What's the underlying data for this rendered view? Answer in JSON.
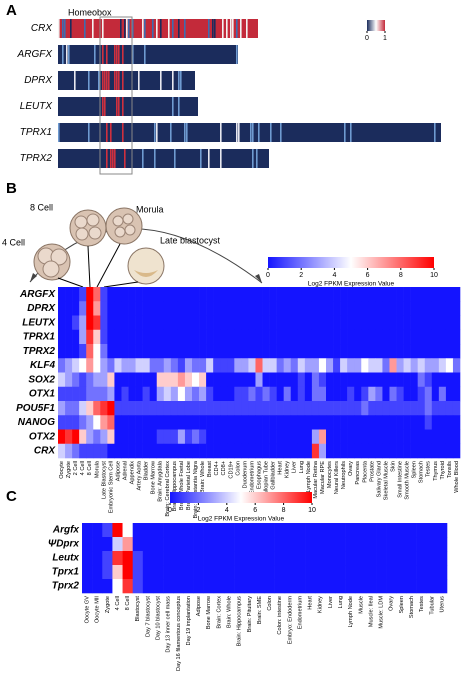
{
  "panel_a": {
    "label": "A",
    "annotation": "Homeobox",
    "genes": [
      "CRX",
      "ARGFX",
      "DPRX",
      "LEUTX",
      "TPRX1",
      "TPRX2"
    ],
    "legend_ticks": [
      0,
      1
    ]
  },
  "chart_data": [
    {
      "type": "heatmap",
      "label": "B",
      "stage_labels": [
        "8 Cell",
        "Morula",
        "4 Cell",
        "Late blastocyst"
      ],
      "rows": [
        "ARGFX",
        "DPRX",
        "LEUTX",
        "TPRX1",
        "TPRX2",
        "KLF4",
        "SOX2",
        "OTX1",
        "POU5F1",
        "NANOG",
        "OTX2",
        "CRX"
      ],
      "row_colors": [
        "#e0218a",
        "#e0218a",
        "#e0218a",
        "#e0218a",
        "#000000",
        "#000000",
        "#000000",
        "#000000",
        "#000000",
        "#000000",
        "#000000",
        "#000000"
      ],
      "columns": [
        "Oocyte",
        "Zygote",
        "2 Cell",
        "4 Cell",
        "8 Cell",
        "Morula",
        "Late Blastocyst",
        "Embryonic Stem Cell",
        "Adipose",
        "Adrenal",
        "Appendix",
        "Artery Aorta",
        "Bladder",
        "Bone Marrow",
        "Brain: Amygdala",
        "Brain: Cerebral Cortex",
        "Brain: Hippocampus",
        "Brain: Whole Foetal",
        "Brain: Parietal Lobe",
        "Brain: Substantia Nigra",
        "Brain: Whole",
        "Breast",
        "CD4+",
        "CD8+",
        "CD19+",
        "Colon",
        "Duodenum",
        "Endometrium",
        "Esophagus",
        "Fallopian Tube",
        "Gallbladder",
        "Heart",
        "Kidney",
        "Liver",
        "Lung",
        "Lymph Node",
        "Macular Retina",
        "Macular RPE",
        "Monocytes",
        "Neural Killers",
        "Neutrophils",
        "Ovary",
        "Pancreas",
        "Placenta",
        "Prostate",
        "Salivary Gland",
        "Skeletal Muscle",
        "Skin",
        "Small Intestine",
        "Smooth Muscle",
        "Spleen",
        "Stomach",
        "Testes",
        "Thymus",
        "Thyroid",
        "Tonsils",
        "Whole Blood"
      ],
      "values": [
        [
          0,
          0,
          0,
          1,
          10,
          8,
          1,
          0,
          0,
          0,
          0,
          0,
          0,
          0,
          0,
          0,
          0,
          0,
          0,
          0,
          0,
          0,
          0,
          0,
          0,
          0,
          0,
          0,
          0,
          0,
          0,
          0,
          0,
          0,
          0,
          0,
          0,
          0,
          0,
          0,
          0,
          0,
          0,
          0,
          0,
          0,
          0,
          0,
          0,
          0,
          0,
          0,
          0,
          0,
          0,
          0,
          0
        ],
        [
          0,
          0,
          0,
          2,
          10,
          7,
          1,
          0,
          0,
          0,
          0,
          0,
          0,
          0,
          0,
          0,
          0,
          0,
          0,
          0,
          0,
          0,
          0,
          0,
          0,
          0,
          0,
          0,
          0,
          0,
          0,
          0,
          0,
          0,
          0,
          0,
          0,
          0,
          0,
          0,
          0,
          0,
          0,
          0,
          0,
          0,
          0,
          0,
          0,
          0,
          0,
          0,
          0,
          0,
          0,
          0,
          0
        ],
        [
          0,
          0,
          1,
          3,
          10,
          9,
          1,
          0,
          0,
          0,
          0,
          0,
          0,
          0,
          0,
          0,
          0,
          0,
          0,
          0,
          0,
          0,
          0,
          0,
          0,
          0,
          0,
          0,
          0,
          0,
          0,
          0,
          0,
          0,
          0,
          0,
          0,
          0,
          0,
          0,
          0,
          0,
          0,
          0,
          0,
          0,
          0,
          0,
          0,
          0,
          0,
          0,
          0,
          0,
          0,
          0,
          0
        ],
        [
          0,
          0,
          0,
          3,
          9,
          6,
          1,
          0,
          0,
          0,
          0,
          0,
          0,
          0,
          0,
          0,
          0,
          0,
          0,
          0,
          0,
          0,
          0,
          0,
          0,
          0,
          0,
          0,
          0,
          0,
          0,
          0,
          0,
          0,
          0,
          0,
          0,
          0,
          0,
          0,
          0,
          0,
          0,
          0,
          0,
          0,
          0,
          0,
          0,
          0,
          0,
          0,
          0,
          0,
          0,
          0,
          0
        ],
        [
          0,
          0,
          0,
          1,
          8,
          5,
          2,
          0,
          0,
          0,
          0,
          0,
          0,
          0,
          0,
          0,
          0,
          0,
          0,
          0,
          0,
          0,
          0,
          0,
          0,
          0,
          0,
          0,
          0,
          0,
          0,
          0,
          0,
          0,
          0,
          0,
          0,
          0,
          0,
          0,
          0,
          0,
          0,
          0,
          0,
          0,
          0,
          0,
          0,
          0,
          0,
          0,
          0,
          0,
          0,
          0,
          0
        ],
        [
          2,
          3,
          4,
          5,
          7,
          5,
          3,
          2,
          4,
          3,
          3,
          4,
          4,
          2,
          2,
          3,
          2,
          1,
          3,
          2,
          2,
          4,
          1,
          1,
          1,
          3,
          3,
          4,
          8,
          4,
          4,
          2,
          3,
          2,
          4,
          3,
          3,
          5,
          3,
          1,
          4,
          3,
          3,
          5,
          4,
          4,
          2,
          7,
          3,
          4,
          3,
          4,
          3,
          3,
          4,
          5,
          2
        ],
        [
          4,
          3,
          2,
          1,
          2,
          3,
          3,
          6,
          0,
          0,
          0,
          0,
          0,
          0,
          6,
          6,
          6,
          7,
          6,
          5,
          6,
          0,
          0,
          0,
          0,
          0,
          0,
          0,
          3,
          0,
          0,
          0,
          0,
          0,
          1,
          0,
          2,
          1,
          0,
          0,
          0,
          0,
          0,
          0,
          0,
          0,
          0,
          0,
          0,
          0,
          0,
          2,
          1,
          0,
          0,
          0,
          0
        ],
        [
          1,
          1,
          1,
          1,
          2,
          2,
          2,
          3,
          0,
          1,
          0,
          0,
          1,
          0,
          3,
          4,
          3,
          5,
          3,
          2,
          3,
          1,
          0,
          0,
          0,
          1,
          1,
          2,
          1,
          2,
          1,
          0,
          2,
          0,
          1,
          0,
          2,
          2,
          0,
          0,
          0,
          1,
          0,
          1,
          3,
          2,
          0,
          2,
          1,
          0,
          0,
          1,
          2,
          0,
          2,
          0,
          0
        ],
        [
          3,
          2,
          2,
          4,
          6,
          8,
          9,
          10,
          1,
          1,
          1,
          1,
          1,
          1,
          1,
          1,
          1,
          1,
          1,
          1,
          1,
          1,
          1,
          1,
          1,
          1,
          1,
          1,
          1,
          1,
          1,
          1,
          1,
          1,
          1,
          1,
          1,
          1,
          1,
          1,
          1,
          1,
          1,
          2,
          1,
          1,
          1,
          1,
          1,
          1,
          1,
          1,
          2,
          1,
          1,
          1,
          1
        ],
        [
          1,
          1,
          1,
          2,
          3,
          5,
          7,
          8,
          0,
          0,
          0,
          0,
          0,
          0,
          0,
          0,
          0,
          0,
          0,
          0,
          0,
          0,
          0,
          0,
          0,
          0,
          0,
          0,
          0,
          0,
          0,
          0,
          0,
          0,
          0,
          0,
          0,
          0,
          0,
          0,
          0,
          0,
          0,
          0,
          0,
          0,
          0,
          0,
          0,
          0,
          0,
          0,
          1,
          0,
          0,
          0,
          0
        ],
        [
          10,
          9,
          10,
          6,
          3,
          2,
          3,
          6,
          0,
          0,
          0,
          0,
          0,
          0,
          1,
          1,
          1,
          3,
          1,
          2,
          1,
          0,
          0,
          0,
          0,
          0,
          0,
          0,
          0,
          0,
          0,
          0,
          0,
          0,
          0,
          0,
          3,
          7,
          0,
          0,
          0,
          0,
          0,
          0,
          0,
          0,
          0,
          0,
          0,
          0,
          0,
          0,
          0,
          0,
          0,
          0,
          0
        ],
        [
          4,
          3,
          2,
          1,
          1,
          1,
          1,
          0,
          0,
          0,
          0,
          0,
          0,
          0,
          0,
          0,
          0,
          0,
          0,
          0,
          0,
          0,
          0,
          0,
          0,
          0,
          0,
          0,
          0,
          0,
          0,
          0,
          0,
          0,
          0,
          0,
          9,
          3,
          0,
          0,
          0,
          0,
          0,
          0,
          0,
          0,
          0,
          0,
          0,
          0,
          0,
          0,
          0,
          0,
          0,
          0,
          0
        ]
      ],
      "clim": [
        0,
        10
      ],
      "ticks": [
        0,
        2,
        4,
        6,
        8,
        10
      ],
      "colors": [
        "#1414ff",
        "#ffffff",
        "#ff0000"
      ],
      "colorbar_label": "Log2 FPKM Expression Value"
    },
    {
      "type": "heatmap",
      "label": "C",
      "rows": [
        "Argfx",
        "ΨDprx",
        "Leutx",
        "Tprx1",
        "Tprx2"
      ],
      "row_colors": [
        "#000000",
        "#000000",
        "#000000",
        "#000000",
        "#000000"
      ],
      "columns": [
        "Oocyte GV",
        "Oocyte MII",
        "Zygote",
        "4 Cell",
        "8 Cell",
        "Blastocyst",
        "Day 7 blastocyst",
        "Day 10 blastocyst",
        "Day 13 inner cell mass",
        "Day 16 filamentous conceptus",
        "Day 19 implantation",
        "Adipose",
        "Bone Marrow",
        "Brain: Cortex",
        "Brain: Whole",
        "Brain: Hippocampus",
        "Brain: Pituitary",
        "Brain: SME",
        "Colon",
        "Colon: intestine",
        "Embryo: Endoderm",
        "Endometrium",
        "Heart",
        "Kidney",
        "Liver",
        "Lung",
        "Lymph Node",
        "Muscle",
        "Muscle: Ileal",
        "Muscle: LDM",
        "Ovary",
        "Spleen",
        "Stomach",
        "Testes",
        "Tubular",
        "Uterus"
      ],
      "values": [
        [
          0,
          0,
          1,
          10,
          5,
          0,
          0,
          0,
          0,
          0,
          0,
          0,
          0,
          0,
          0,
          0,
          0,
          0,
          0,
          0,
          0,
          0,
          0,
          0,
          0,
          0,
          0,
          0,
          0,
          0,
          0,
          0,
          0,
          0,
          0,
          0
        ],
        [
          0,
          0,
          0,
          4,
          7,
          0,
          0,
          0,
          0,
          0,
          0,
          0,
          0,
          0,
          0,
          0,
          0,
          0,
          0,
          0,
          0,
          0,
          0,
          0,
          0,
          0,
          0,
          0,
          0,
          0,
          0,
          0,
          0,
          0,
          0,
          0
        ],
        [
          0,
          0,
          1,
          9,
          10,
          1,
          0,
          0,
          0,
          0,
          0,
          0,
          0,
          0,
          0,
          0,
          0,
          0,
          0,
          0,
          0,
          0,
          0,
          0,
          0,
          0,
          0,
          0,
          0,
          0,
          0,
          0,
          0,
          0,
          0,
          0
        ],
        [
          0,
          0,
          1,
          6,
          10,
          1,
          0,
          0,
          0,
          0,
          0,
          0,
          0,
          0,
          0,
          0,
          0,
          0,
          0,
          0,
          0,
          0,
          0,
          0,
          0,
          0,
          0,
          0,
          0,
          0,
          0,
          0,
          0,
          0,
          0,
          0
        ],
        [
          0,
          0,
          0,
          5,
          9,
          1,
          0,
          0,
          0,
          0,
          0,
          0,
          0,
          0,
          0,
          0,
          0,
          0,
          0,
          0,
          0,
          0,
          0,
          0,
          0,
          0,
          0,
          0,
          0,
          0,
          0,
          0,
          0,
          0,
          0,
          0
        ]
      ],
      "clim": [
        0,
        10
      ],
      "ticks": [
        0,
        2,
        4,
        6,
        8,
        10
      ],
      "colors": [
        "#1414ff",
        "#ffffff",
        "#ff0000"
      ],
      "colorbar_label": "Log2 FPKM Expression Value"
    }
  ]
}
